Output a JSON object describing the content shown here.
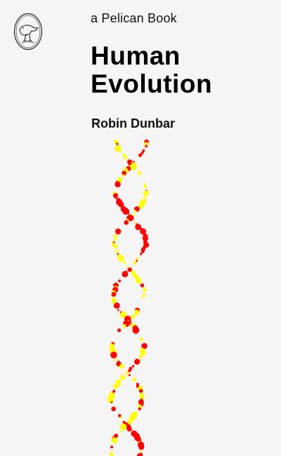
{
  "cover": {
    "series": "a Pelican Book",
    "title_line1": "Human",
    "title_line2": "Evolution",
    "author": "Robin Dunbar",
    "logo_icon": "pelican-logo-icon",
    "illustration": "dna-double-helix",
    "colors": {
      "background": "#f5f5f5",
      "text": "#000000",
      "strand_red": "#ff0000",
      "strand_yellow": "#ffff00"
    }
  }
}
